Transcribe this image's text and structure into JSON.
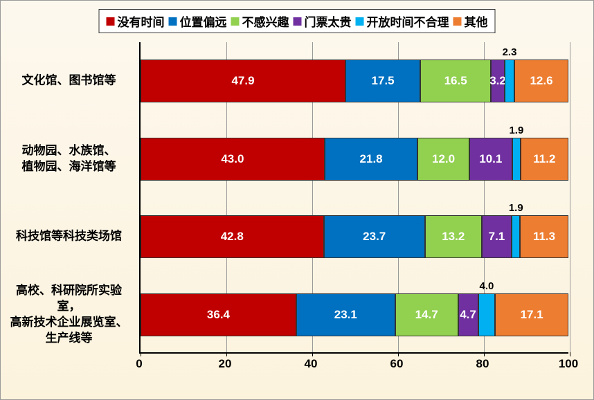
{
  "chart": {
    "type": "stacked-horizontal-bar",
    "background_gradient": [
      "#fdf8ee",
      "#fcf3dd"
    ],
    "xlim": [
      0,
      100
    ],
    "xtick_step": 20,
    "xticks": [
      "0",
      "20",
      "40",
      "60",
      "80",
      "100"
    ],
    "legend": [
      {
        "label": "没有时间",
        "color": "#c00000"
      },
      {
        "label": "位置偏远",
        "color": "#0070c0"
      },
      {
        "label": "不感兴趣",
        "color": "#92d050"
      },
      {
        "label": "门票太贵",
        "color": "#7030a0"
      },
      {
        "label": "开放时间不合理",
        "color": "#00b0f0"
      },
      {
        "label": "其他",
        "color": "#ed7d31"
      }
    ],
    "categories": [
      {
        "label": "文化馆、图书馆等",
        "values": [
          47.9,
          17.5,
          16.5,
          3.2,
          2.3,
          12.6
        ],
        "tiny_above": [
          false,
          false,
          false,
          false,
          true,
          false
        ]
      },
      {
        "label": "动物园、水族馆、\n植物园、海洋馆等",
        "values": [
          43.0,
          21.8,
          12.0,
          10.1,
          1.9,
          11.2
        ],
        "tiny_above": [
          false,
          false,
          false,
          false,
          true,
          false
        ]
      },
      {
        "label": "科技馆等科技类场馆",
        "values": [
          42.8,
          23.7,
          13.2,
          7.1,
          1.9,
          11.3
        ],
        "tiny_above": [
          false,
          false,
          false,
          false,
          true,
          false
        ]
      },
      {
        "label": "高校、科研院所实验\n室，\n高新技术企业展览室、\n生产线等",
        "values": [
          36.4,
          23.1,
          14.7,
          4.7,
          4.0,
          17.1
        ],
        "tiny_above": [
          false,
          false,
          false,
          false,
          true,
          false
        ]
      }
    ],
    "text_color_on_bar": "#ffffff",
    "axis_color": "#000000",
    "grid_color": "#999999",
    "label_fontsize": 17,
    "legend_fontsize": 17
  }
}
